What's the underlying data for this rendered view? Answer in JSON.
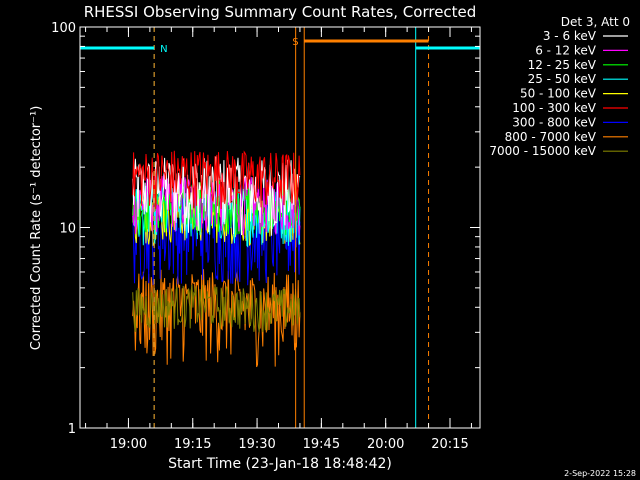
{
  "chart_data": {
    "type": "line",
    "title": "RHESSI Observing Summary Count Rates, Corrected",
    "xlabel": "Start Time (23-Jan-18 18:48:42)",
    "ylabel": "Corrected Count Rate (s⁻¹ detector⁻¹)",
    "y_scale": "log",
    "ylim": [
      1,
      100
    ],
    "xlim": [
      "18:48:42",
      "20:22:00"
    ],
    "x_ticks": [
      "19:00",
      "19:15",
      "19:30",
      "19:45",
      "20:00",
      "20:15"
    ],
    "y_ticks": [
      "1",
      "10",
      "100"
    ],
    "legend_title": "Det 3, Att 0",
    "legend_placement": "outside-right",
    "series": [
      {
        "name": "3 - 6 keV",
        "color": "#ffffff",
        "range": [
          9,
          22
        ]
      },
      {
        "name": "6 - 12 keV",
        "color": "#ff00ff",
        "range": [
          9,
          18
        ]
      },
      {
        "name": "12 - 25 keV",
        "color": "#00ff00",
        "range": [
          9,
          17
        ]
      },
      {
        "name": "25 - 50 keV",
        "color": "#00ffff",
        "range": [
          8,
          16
        ]
      },
      {
        "name": "50 - 100 keV",
        "color": "#ffff00",
        "range": [
          8,
          15
        ]
      },
      {
        "name": "100 - 300 keV",
        "color": "#ff0000",
        "range": [
          12,
          24
        ]
      },
      {
        "name": "300 - 800 keV",
        "color": "#0000ff",
        "range": [
          5,
          14
        ]
      },
      {
        "name": "800 - 7000 keV",
        "color": "#ff8000",
        "range": [
          2,
          6
        ]
      },
      {
        "name": "7000 - 15000 keV",
        "color": "#808000",
        "range": [
          3,
          5
        ]
      }
    ],
    "data_interval": [
      "19:01:00",
      "19:40:00"
    ],
    "markers": [
      {
        "label": "N",
        "color": "#00ffff",
        "spans": [
          [
            "18:48:42",
            "19:06:00"
          ],
          [
            "20:07:00",
            "20:22:00"
          ]
        ]
      },
      {
        "label": "S",
        "color": "#ff8000",
        "spans": [
          [
            "19:41:00",
            "20:10:00"
          ]
        ]
      }
    ],
    "marker_lines": [
      {
        "time": "18:48:42",
        "color": "#00ffff",
        "style": "solid"
      },
      {
        "time": "19:06:00",
        "color": "#00ffff",
        "style": "dashed"
      },
      {
        "time": "19:06:00",
        "color": "#ff8000",
        "style": "dashed"
      },
      {
        "time": "19:39:00",
        "color": "#ff8000",
        "style": "solid"
      },
      {
        "time": "19:41:00",
        "color": "#ff8000",
        "style": "solid"
      },
      {
        "time": "20:07:00",
        "color": "#00ffff",
        "style": "solid"
      },
      {
        "time": "20:10:00",
        "color": "#ff8000",
        "style": "dashed"
      },
      {
        "time": "20:22:00",
        "color": "#00ffff",
        "style": "dashed"
      }
    ]
  },
  "footer": {
    "date": "2-Sep-2022 15:28"
  }
}
